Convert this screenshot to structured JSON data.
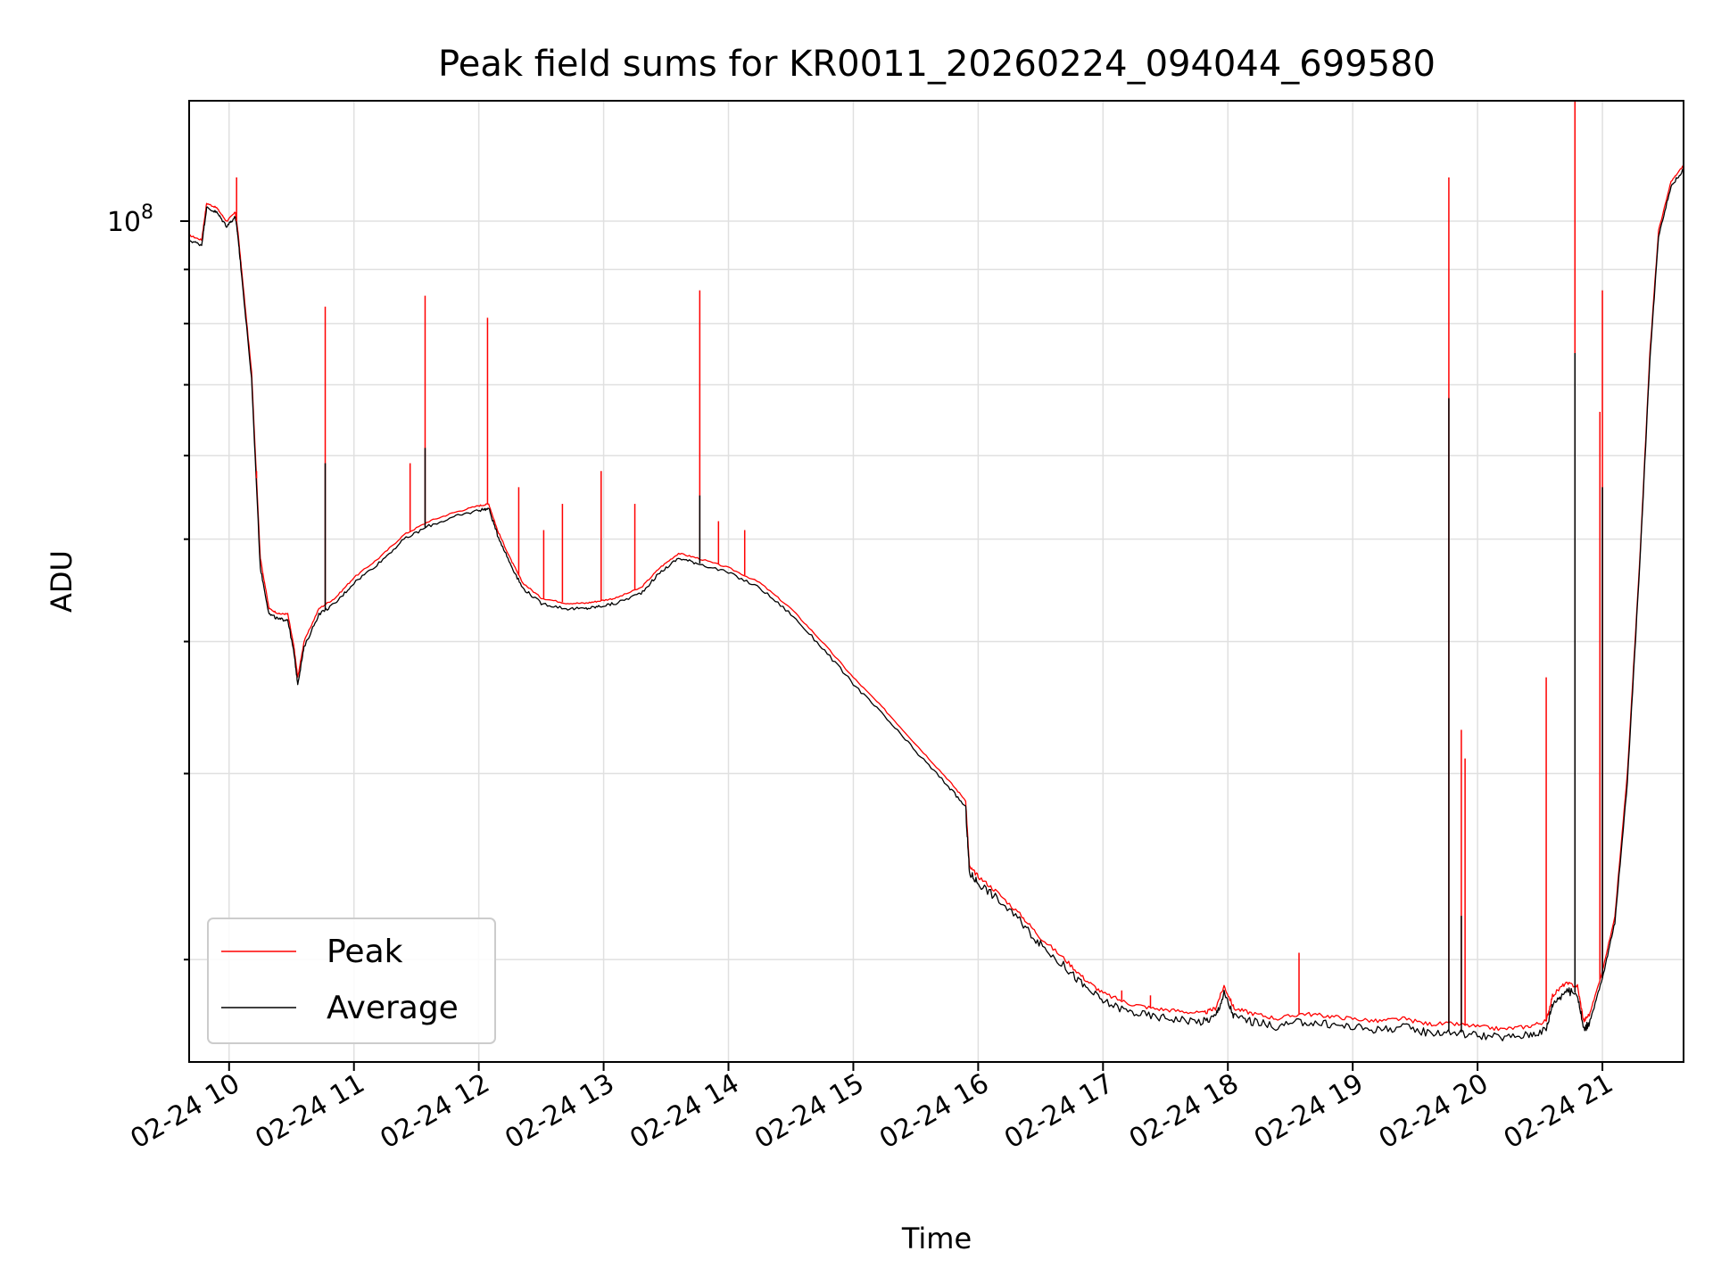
{
  "chart_data": {
    "type": "line",
    "title": "Peak field sums for KR0011_20260224_094044_699580",
    "xlabel": "Time",
    "ylabel": "ADU",
    "yscale": "log",
    "grid": true,
    "legend_position": "bottom-left",
    "x_ticks": [
      "02-24 10",
      "02-24 11",
      "02-24 12",
      "02-24 13",
      "02-24 14",
      "02-24 15",
      "02-24 16",
      "02-24 17",
      "02-24 18",
      "02-24 19",
      "02-24 20",
      "02-24 21"
    ],
    "x_tick_hours": [
      10,
      11,
      12,
      13,
      14,
      15,
      16,
      17,
      18,
      19,
      20,
      21
    ],
    "xlim": [
      "02-24 09:40",
      "02-24 21:40"
    ],
    "xlim_hours": [
      9.68,
      21.65
    ],
    "y_major_tick_label": "10^8",
    "y_major_tick_value": 100000000,
    "ylim": [
      16000000,
      130000000
    ],
    "series": [
      {
        "name": "Peak",
        "color": "#ff0000",
        "x": [
          9.68,
          9.78,
          9.82,
          9.9,
          9.98,
          10.05,
          10.07,
          10.1,
          10.18,
          10.25,
          10.32,
          10.4,
          10.47,
          10.52,
          10.55,
          10.6,
          10.72,
          10.85,
          11.0,
          11.2,
          11.4,
          11.6,
          11.8,
          12.0,
          12.08,
          12.15,
          12.25,
          12.35,
          12.5,
          12.7,
          12.85,
          12.96,
          13.1,
          13.3,
          13.45,
          13.6,
          13.75,
          14.0,
          14.25,
          14.5,
          14.75,
          15.0,
          15.25,
          15.5,
          15.75,
          15.9,
          15.93,
          16.0,
          16.15,
          16.35,
          16.5,
          16.7,
          16.85,
          17.0,
          17.2,
          17.4,
          17.6,
          17.8,
          17.9,
          17.97,
          18.05,
          18.2,
          18.4,
          18.6,
          18.8,
          19.0,
          19.2,
          19.4,
          19.6,
          19.8,
          20.0,
          20.2,
          20.4,
          20.55,
          20.6,
          20.7,
          20.8,
          20.85,
          20.9,
          21.0,
          21.1,
          21.2,
          21.3,
          21.38,
          21.45,
          21.55,
          21.65
        ],
        "y": [
          97000000,
          96000000,
          104000000,
          103000000,
          100000000,
          102000000,
          98000000,
          90000000,
          72000000,
          48000000,
          43000000,
          42500000,
          42500000,
          39500000,
          37000000,
          40000000,
          43000000,
          44000000,
          46000000,
          48000000,
          50500000,
          52000000,
          53000000,
          53800000,
          54000000,
          51000000,
          48000000,
          45500000,
          44000000,
          43500000,
          43500000,
          43700000,
          44000000,
          45000000,
          47000000,
          48500000,
          48000000,
          47000000,
          45500000,
          43000000,
          40000000,
          37000000,
          34500000,
          32000000,
          29700000,
          28300000,
          24500000,
          24000000,
          23200000,
          22000000,
          21000000,
          20000000,
          19200000,
          18600000,
          18200000,
          18000000,
          17900000,
          17800000,
          18000000,
          18900000,
          18000000,
          17800000,
          17600000,
          17800000,
          17700000,
          17600000,
          17500000,
          17600000,
          17400000,
          17400000,
          17300000,
          17200000,
          17300000,
          17500000,
          18500000,
          19000000,
          18900000,
          17500000,
          17800000,
          19500000,
          22000000,
          30000000,
          48000000,
          75000000,
          98000000,
          109000000,
          113000000
        ]
      },
      {
        "name": "Average",
        "color": "#000000",
        "x": [
          9.68,
          9.78,
          9.82,
          9.9,
          9.98,
          10.05,
          10.07,
          10.1,
          10.18,
          10.25,
          10.32,
          10.4,
          10.47,
          10.52,
          10.55,
          10.6,
          10.72,
          10.85,
          11.0,
          11.2,
          11.4,
          11.6,
          11.8,
          12.0,
          12.08,
          12.15,
          12.25,
          12.35,
          12.5,
          12.7,
          12.85,
          12.96,
          13.1,
          13.3,
          13.45,
          13.6,
          13.75,
          14.0,
          14.25,
          14.5,
          14.75,
          15.0,
          15.25,
          15.5,
          15.75,
          15.9,
          15.93,
          16.0,
          16.15,
          16.35,
          16.5,
          16.7,
          16.85,
          17.0,
          17.2,
          17.4,
          17.6,
          17.8,
          17.9,
          17.97,
          18.05,
          18.2,
          18.4,
          18.6,
          18.8,
          19.0,
          19.2,
          19.4,
          19.6,
          19.8,
          20.0,
          20.2,
          20.4,
          20.55,
          20.6,
          20.7,
          20.8,
          20.85,
          20.9,
          21.0,
          21.1,
          21.2,
          21.3,
          21.38,
          21.45,
          21.55,
          21.65
        ],
        "y": [
          96000000,
          95000000,
          103000000,
          102000000,
          99000000,
          101000000,
          97000000,
          89000000,
          71000000,
          47000000,
          42500000,
          42000000,
          42000000,
          39000000,
          36500000,
          39500000,
          42500000,
          43500000,
          45500000,
          47500000,
          50000000,
          51500000,
          52500000,
          53300000,
          53500000,
          50500000,
          47500000,
          45000000,
          43500000,
          43000000,
          43000000,
          43200000,
          43500000,
          44500000,
          46500000,
          48000000,
          47500000,
          46500000,
          45000000,
          42500000,
          39500000,
          36500000,
          34000000,
          31500000,
          29300000,
          27900000,
          24200000,
          23700000,
          22900000,
          21700000,
          20700000,
          19700000,
          18900000,
          18300000,
          17900000,
          17700000,
          17600000,
          17500000,
          17700000,
          18600000,
          17700000,
          17500000,
          17300000,
          17500000,
          17400000,
          17300000,
          17200000,
          17300000,
          17100000,
          17100000,
          17000000,
          16900000,
          17000000,
          17200000,
          18200000,
          18700000,
          18600000,
          17200000,
          17500000,
          19200000,
          21700000,
          29500000,
          47500000,
          74000000,
          97000000,
          108000000,
          112000000
        ]
      }
    ],
    "spikes": [
      {
        "series": "Peak",
        "x": 10.06,
        "y": 110000000
      },
      {
        "series": "Peak",
        "x": 10.22,
        "y": 58000000
      },
      {
        "series": "Peak",
        "x": 10.77,
        "y": 83000000
      },
      {
        "series": "Average",
        "x": 10.77,
        "y": 59000000
      },
      {
        "series": "Peak",
        "x": 11.45,
        "y": 59000000
      },
      {
        "series": "Peak",
        "x": 11.57,
        "y": 85000000
      },
      {
        "series": "Average",
        "x": 11.57,
        "y": 61000000
      },
      {
        "series": "Peak",
        "x": 12.07,
        "y": 81000000
      },
      {
        "series": "Peak",
        "x": 12.32,
        "y": 56000000
      },
      {
        "series": "Peak",
        "x": 12.52,
        "y": 51000000
      },
      {
        "series": "Peak",
        "x": 12.67,
        "y": 54000000
      },
      {
        "series": "Peak",
        "x": 12.98,
        "y": 58000000
      },
      {
        "series": "Peak",
        "x": 13.25,
        "y": 54000000
      },
      {
        "series": "Peak",
        "x": 13.77,
        "y": 86000000
      },
      {
        "series": "Average",
        "x": 13.77,
        "y": 55000000
      },
      {
        "series": "Peak",
        "x": 13.92,
        "y": 52000000
      },
      {
        "series": "Peak",
        "x": 14.13,
        "y": 51000000
      },
      {
        "series": "Peak",
        "x": 17.15,
        "y": 18700000
      },
      {
        "series": "Peak",
        "x": 17.38,
        "y": 18500000
      },
      {
        "series": "Peak",
        "x": 18.57,
        "y": 20300000
      },
      {
        "series": "Peak",
        "x": 19.77,
        "y": 110000000
      },
      {
        "series": "Average",
        "x": 19.77,
        "y": 68000000
      },
      {
        "series": "Peak",
        "x": 19.87,
        "y": 33000000
      },
      {
        "series": "Average",
        "x": 19.87,
        "y": 22000000
      },
      {
        "series": "Peak",
        "x": 19.9,
        "y": 31000000
      },
      {
        "series": "Peak",
        "x": 20.55,
        "y": 37000000
      },
      {
        "series": "Peak",
        "x": 20.78,
        "y": 130000000
      },
      {
        "series": "Average",
        "x": 20.78,
        "y": 75000000
      },
      {
        "series": "Peak",
        "x": 20.98,
        "y": 66000000
      },
      {
        "series": "Peak",
        "x": 21.0,
        "y": 86000000
      },
      {
        "series": "Average",
        "x": 21.0,
        "y": 56000000
      }
    ]
  }
}
